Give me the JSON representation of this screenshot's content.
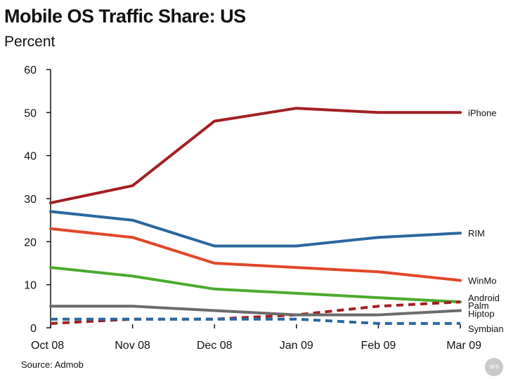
{
  "chart_data": {
    "type": "line",
    "title": "Mobile OS Traffic Share: US",
    "subtitle": "Percent",
    "source": "Source: Admob",
    "badge": "ars",
    "categories": [
      "Oct 08",
      "Nov 08",
      "Dec 08",
      "Jan 09",
      "Feb 09",
      "Mar 09"
    ],
    "ylim": [
      0,
      60
    ],
    "yticks": [
      0,
      10,
      20,
      30,
      40,
      50,
      60
    ],
    "grid": false,
    "series": [
      {
        "name": "iPhone",
        "color": "#a31f22",
        "dashed": false,
        "values": [
          29,
          33,
          48,
          51,
          50,
          50
        ]
      },
      {
        "name": "RIM",
        "color": "#2b67a0",
        "dashed": false,
        "values": [
          27,
          25,
          19,
          19,
          21,
          22
        ]
      },
      {
        "name": "WinMo",
        "color": "#e2462a",
        "dashed": false,
        "values": [
          23,
          21,
          15,
          14,
          13,
          11
        ]
      },
      {
        "name": "Android",
        "color": "#4aab2d",
        "dashed": false,
        "values": [
          14,
          12,
          9,
          8,
          7,
          6
        ]
      },
      {
        "name": "Palm",
        "color": "#a31f22",
        "dashed": true,
        "values": [
          1,
          2,
          2,
          3,
          5,
          6
        ]
      },
      {
        "name": "Hiptop",
        "color": "#6b6b6b",
        "dashed": false,
        "values": [
          5,
          5,
          4,
          3,
          3,
          4
        ]
      },
      {
        "name": "Symbian",
        "color": "#2b67a0",
        "dashed": true,
        "values": [
          2,
          2,
          2,
          2,
          1,
          1
        ]
      }
    ]
  }
}
